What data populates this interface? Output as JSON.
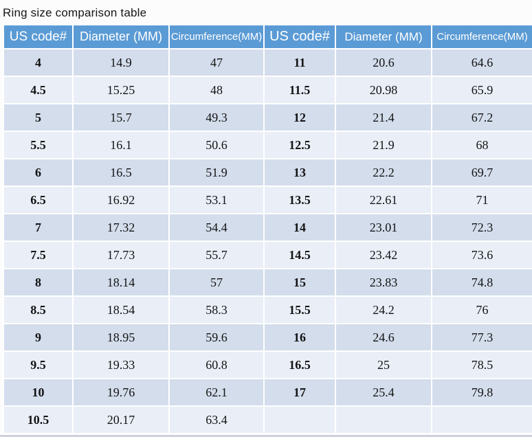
{
  "title": "Ring size comparison table",
  "colors": {
    "header_bg": "#5b9bd5",
    "header_text": "#ffffff",
    "row_odd_bg": "#d3ddec",
    "row_even_bg": "#e9eef7",
    "gridline": "#ffffff",
    "body_text": "#131313"
  },
  "table": {
    "headers": [
      "US code#",
      "Diameter (MM)",
      "Circumference(MM)",
      "US code#",
      "Diameter (MM)",
      "Circumference(MM)"
    ],
    "rows": [
      [
        "4",
        "14.9",
        "47",
        "11",
        "20.6",
        "64.6"
      ],
      [
        "4.5",
        "15.25",
        "48",
        "11.5",
        "20.98",
        "65.9"
      ],
      [
        "5",
        "15.7",
        "49.3",
        "12",
        "21.4",
        "67.2"
      ],
      [
        "5.5",
        "16.1",
        "50.6",
        "12.5",
        "21.9",
        "68"
      ],
      [
        "6",
        "16.5",
        "51.9",
        "13",
        "22.2",
        "69.7"
      ],
      [
        "6.5",
        "16.92",
        "53.1",
        "13.5",
        "22.61",
        "71"
      ],
      [
        "7",
        "17.32",
        "54.4",
        "14",
        "23.01",
        "72.3"
      ],
      [
        "7.5",
        "17.73",
        "55.7",
        "14.5",
        "23.42",
        "73.6"
      ],
      [
        "8",
        "18.14",
        "57",
        "15",
        "23.83",
        "74.8"
      ],
      [
        "8.5",
        "18.54",
        "58.3",
        "15.5",
        "24.2",
        "76"
      ],
      [
        "9",
        "18.95",
        "59.6",
        "16",
        "24.6",
        "77.3"
      ],
      [
        "9.5",
        "19.33",
        "60.8",
        "16.5",
        "25",
        "78.5"
      ],
      [
        "10",
        "19.76",
        "62.1",
        "17",
        "25.4",
        "79.8"
      ],
      [
        "10.5",
        "20.17",
        "63.4",
        "",
        "",
        ""
      ]
    ]
  }
}
